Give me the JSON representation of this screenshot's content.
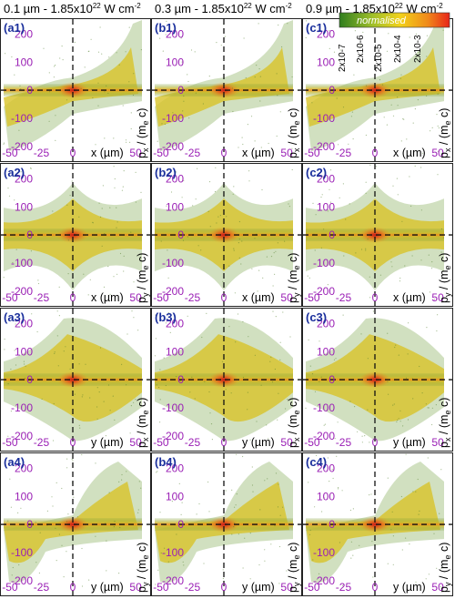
{
  "column_titles": [
    {
      "t1": "0.1 µm - 1.85x10",
      "exp": "22",
      "t2": " W cm",
      "exp2": "-2"
    },
    {
      "t1": "0.3 µm - 1.85x10",
      "exp": "22",
      "t2": " W cm",
      "exp2": "-2"
    },
    {
      "t1": "0.9 µm - 1.85x10",
      "exp": "22",
      "t2": " W cm",
      "exp2": "-2"
    }
  ],
  "colorbar": {
    "title": "normalised",
    "ticks": [
      "2x10-7",
      "2x10-5",
      "2x10-3"
    ],
    "ticks_mid": [
      "2x10-6",
      "2x10-4"
    ],
    "colors": [
      "#2f7d1e",
      "#9fbf2a",
      "#f2d21a",
      "#f08a1a",
      "#e8251a"
    ]
  },
  "colors": {
    "panel_label": "#1a2f9c",
    "tick_label": "#9a1fb5",
    "density_low": "#5e8f3a",
    "density_mid": "#e6c21e",
    "density_high": "#e0301a"
  },
  "chart_data": {
    "type": "heatmap",
    "rows": 4,
    "cols": 3,
    "panels": [
      {
        "label": "(a1)",
        "xlabel": "x (µm)",
        "ylabel": "p",
        "ysub": "x",
        "yrest": " / (m",
        "ysub2": "e",
        "yend": " c)"
      },
      {
        "label": "(b1)",
        "xlabel": "x (µm)",
        "ylabel": "p",
        "ysub": "x",
        "yrest": " / (m",
        "ysub2": "e",
        "yend": " c)"
      },
      {
        "label": "(c1)",
        "xlabel": "x (µm)",
        "ylabel": "p",
        "ysub": "x",
        "yrest": " / (m",
        "ysub2": "e",
        "yend": " c)"
      },
      {
        "label": "(a2)",
        "xlabel": "x (µm)",
        "ylabel": "p",
        "ysub": "y",
        "yrest": " / (m",
        "ysub2": "e",
        "yend": " c)"
      },
      {
        "label": "(b2)",
        "xlabel": "x (µm)",
        "ylabel": "p",
        "ysub": "y",
        "yrest": " / (m",
        "ysub2": "e",
        "yend": " c)"
      },
      {
        "label": "(c2)",
        "xlabel": "x (µm)",
        "ylabel": "p",
        "ysub": "y",
        "yrest": " / (m",
        "ysub2": "e",
        "yend": " c)"
      },
      {
        "label": "(a3)",
        "xlabel": "y (µm)",
        "ylabel": "p",
        "ysub": "x",
        "yrest": " / (m",
        "ysub2": "e",
        "yend": " c)"
      },
      {
        "label": "(b3)",
        "xlabel": "y (µm)",
        "ylabel": "p",
        "ysub": "x",
        "yrest": " / (m",
        "ysub2": "e",
        "yend": " c)"
      },
      {
        "label": "(c3)",
        "xlabel": "y (µm)",
        "ylabel": "p",
        "ysub": "x",
        "yrest": " / (m",
        "ysub2": "e",
        "yend": " c)"
      },
      {
        "label": "(a4)",
        "xlabel": "y (µm)",
        "ylabel": "p",
        "ysub": "y",
        "yrest": " / (m",
        "ysub2": "e",
        "yend": " c)"
      },
      {
        "label": "(b4)",
        "xlabel": "y (µm)",
        "ylabel": "p",
        "ysub": "y",
        "yrest": " / (m",
        "ysub2": "e",
        "yend": " c)"
      },
      {
        "label": "(c4)",
        "xlabel": "y (µm)",
        "ylabel": "p",
        "ysub": "y",
        "yrest": " / (m",
        "ysub2": "e",
        "yend": " c)"
      }
    ],
    "xlim": [
      -55,
      55
    ],
    "ylim": [
      -230,
      250
    ],
    "xticks": [
      -50,
      -25,
      0,
      50
    ],
    "xtick_labels": [
      "-50",
      "-25",
      "0",
      "50"
    ],
    "yticks": [
      200,
      100,
      0,
      -100,
      -200
    ],
    "ytick_labels": [
      "200",
      "100",
      "0",
      "-100",
      "-200"
    ],
    "dashed_lines": {
      "x": 0,
      "y": 0
    }
  }
}
